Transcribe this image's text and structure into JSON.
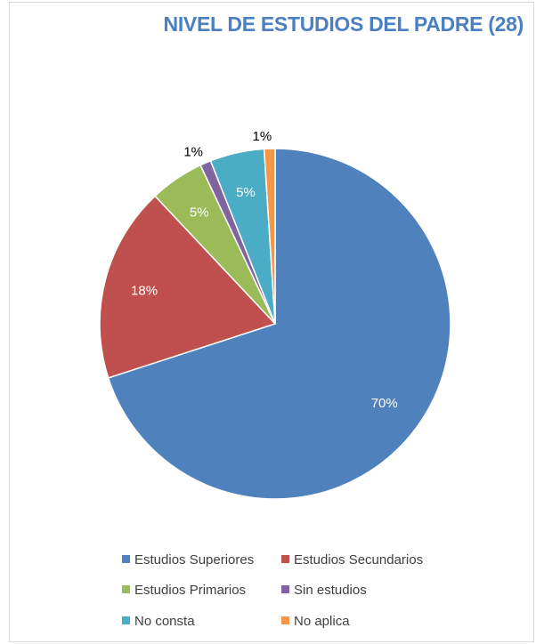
{
  "chart_data": {
    "type": "pie",
    "title": "NIVEL DE ESTUDIOS DEL PADRE (28)",
    "legend_position": "bottom",
    "slices": [
      {
        "name": "Estudios Superiores",
        "value": 70,
        "label": "70%",
        "color": "#4f81bd"
      },
      {
        "name": "Estudios Secundarios",
        "value": 18,
        "label": "18%",
        "color": "#c0504d"
      },
      {
        "name": "Estudios Primarios",
        "value": 5,
        "label": "5%",
        "color": "#9bbb59"
      },
      {
        "name": "Sin estudios",
        "value": 1,
        "label": "1%",
        "color": "#8064a2"
      },
      {
        "name": "No consta",
        "value": 5,
        "label": "5%",
        "color": "#4bacc6"
      },
      {
        "name": "No aplica",
        "value": 1,
        "label": "1%",
        "color": "#f79646"
      }
    ]
  }
}
